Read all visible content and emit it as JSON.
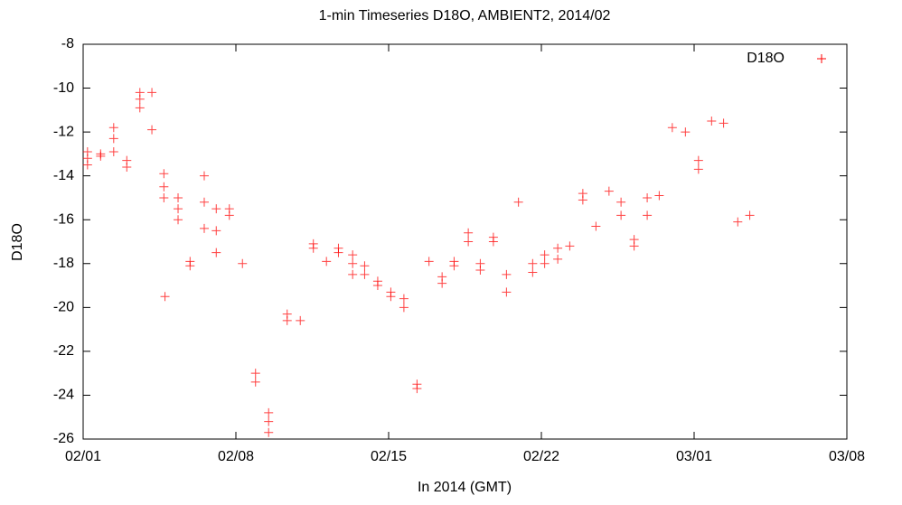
{
  "chart_data": {
    "type": "scatter",
    "title": "1-min Timeseries D18O, AMBIENT2, 2014/02",
    "x_label": "In 2014 (GMT)",
    "y_label": "D18O",
    "xlim": [
      0,
      35
    ],
    "xticks": [
      {
        "value": 0,
        "label": "02/01"
      },
      {
        "value": 7,
        "label": "02/08"
      },
      {
        "value": 14,
        "label": "02/15"
      },
      {
        "value": 21,
        "label": "02/22"
      },
      {
        "value": 28,
        "label": "03/01"
      },
      {
        "value": 35,
        "label": "03/08"
      }
    ],
    "ylim": [
      -26,
      -8
    ],
    "yticks": [
      -26,
      -24,
      -22,
      -20,
      -18,
      -16,
      -14,
      -12,
      -10,
      -8
    ],
    "legend": "top-right",
    "series": [
      {
        "name": "D18O",
        "color": "#ff0000",
        "x": [
          0.2,
          0.2,
          0.2,
          0.8,
          0.8,
          1.4,
          1.4,
          1.4,
          2.0,
          2.0,
          2.6,
          2.6,
          2.6,
          3.15,
          3.15,
          3.7,
          3.7,
          3.7,
          3.75,
          4.35,
          4.35,
          4.35,
          4.9,
          4.9,
          5.55,
          5.55,
          5.55,
          6.1,
          6.1,
          6.1,
          6.7,
          6.7,
          7.3,
          7.9,
          7.9,
          8.5,
          8.5,
          8.5,
          9.35,
          9.35,
          9.95,
          10.55,
          10.55,
          11.15,
          11.7,
          11.7,
          12.35,
          12.35,
          12.35,
          12.9,
          12.9,
          13.5,
          13.5,
          14.1,
          14.1,
          14.7,
          14.7,
          15.3,
          15.3,
          15.85,
          16.45,
          16.45,
          17.0,
          17.0,
          17.65,
          17.65,
          18.2,
          18.2,
          18.8,
          18.8,
          19.4,
          19.4,
          19.95,
          20.6,
          20.6,
          21.15,
          21.15,
          21.75,
          21.75,
          22.3,
          22.9,
          22.9,
          23.5,
          24.1,
          24.65,
          24.65,
          25.25,
          25.25,
          25.85,
          25.85,
          26.4,
          27.0,
          27.6,
          28.2,
          28.2,
          28.8,
          29.35,
          30.0,
          30.55
        ],
        "y": [
          -12.9,
          -13.2,
          -13.5,
          -13.0,
          -13.1,
          -11.8,
          -12.3,
          -12.9,
          -13.3,
          -13.6,
          -10.2,
          -10.5,
          -10.9,
          -10.2,
          -11.9,
          -13.9,
          -14.5,
          -15.0,
          -19.5,
          -15.0,
          -15.5,
          -16.0,
          -17.9,
          -18.1,
          -14.0,
          -15.2,
          -16.4,
          -15.5,
          -16.5,
          -17.5,
          -15.5,
          -15.8,
          -18.0,
          -23.0,
          -23.4,
          -24.8,
          -25.2,
          -25.7,
          -20.3,
          -20.6,
          -20.6,
          -17.1,
          -17.3,
          -17.9,
          -17.3,
          -17.5,
          -17.6,
          -18.0,
          -18.5,
          -18.1,
          -18.5,
          -18.8,
          -19.0,
          -19.3,
          -19.5,
          -19.6,
          -20.0,
          -23.5,
          -23.7,
          -17.9,
          -18.6,
          -18.9,
          -17.9,
          -18.1,
          -16.6,
          -17.0,
          -18.0,
          -18.3,
          -16.8,
          -17.0,
          -18.5,
          -19.3,
          -15.2,
          -18.0,
          -18.4,
          -17.6,
          -18.0,
          -17.3,
          -17.8,
          -17.2,
          -14.8,
          -15.1,
          -16.3,
          -14.7,
          -15.2,
          -15.8,
          -16.9,
          -17.2,
          -15.0,
          -15.8,
          -14.9,
          -11.8,
          -12.0,
          -13.3,
          -13.7,
          -11.5,
          -11.6,
          -16.1,
          -15.8
        ]
      }
    ]
  }
}
